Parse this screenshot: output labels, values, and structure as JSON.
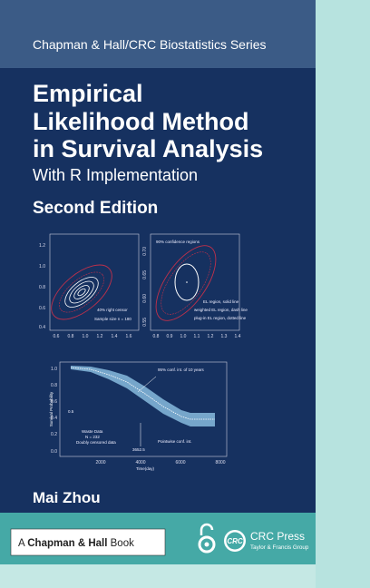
{
  "header": {
    "series": "Chapman & Hall/CRC Biostatistics Series"
  },
  "title": {
    "lines": [
      "Empirical",
      "Likelihood Method",
      "in Survival Analysis"
    ],
    "subtitle": "With R Implementation",
    "edition": "Second Edition"
  },
  "figures": {
    "left_plot": {
      "yticks": [
        "1.2",
        "1.0",
        "0.8",
        "0.6",
        "0.4"
      ],
      "xticks": [
        "0.6",
        "0.8",
        "1.0",
        "1.2",
        "1.4",
        "1.6"
      ],
      "legend": [
        "40% right censor",
        "Sample size n = 180"
      ]
    },
    "right_plot": {
      "yticks": [
        "0.70",
        "0.65",
        "0.60",
        "0.55"
      ],
      "xticks": [
        "0.8",
        "0.9",
        "1.0",
        "1.1",
        "1.2",
        "1.3",
        "1.4"
      ],
      "legend_title": "90% confidence regions",
      "legend": [
        "EL region, solid line",
        "weighted EL region, dash line",
        "plug-in EL region, dotted line"
      ]
    },
    "survival_plot": {
      "ylabel": "Survival Probability",
      "xlabel": "Time(day)",
      "yticks": [
        "1.0",
        "0.8",
        "0.6",
        "0.4",
        "0.2",
        "0.0"
      ],
      "xticks": [
        "2000",
        "4000",
        "6000",
        "8000"
      ],
      "annotation": "95% conf. int. of 10 years",
      "notes": [
        "Waste Data",
        "N = 232",
        "Doubly censored data"
      ],
      "point": "3652.5",
      "interval_note": "Pointwise conf. int.",
      "level": "0.5"
    }
  },
  "author": "Mai Zhou",
  "publisher": {
    "book_prefix": "A",
    "book_name": "Chapman & Hall",
    "book_suffix": "Book",
    "press": "CRC Press",
    "group": "Taylor & Francis Group",
    "logo": "CRC"
  }
}
